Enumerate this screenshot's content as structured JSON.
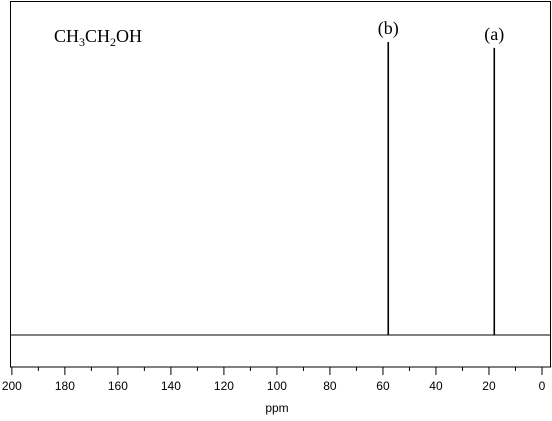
{
  "chart_data": {
    "type": "spectrum",
    "title": "CH3CH2OH",
    "x": [
      58,
      18
    ],
    "values": [
      100,
      98
    ],
    "peak_labels": [
      "(b)",
      "(a)"
    ],
    "color": "#000000",
    "xlabel": "ppm",
    "xlim": [
      200.7,
      -3.4
    ],
    "ylim": [
      0,
      100
    ],
    "xticks": [
      200,
      180,
      160,
      140,
      120,
      100,
      80,
      60,
      40,
      20,
      0
    ],
    "xminorticks": [
      190,
      170,
      150,
      130,
      110,
      90,
      70,
      50,
      30,
      10
    ]
  }
}
